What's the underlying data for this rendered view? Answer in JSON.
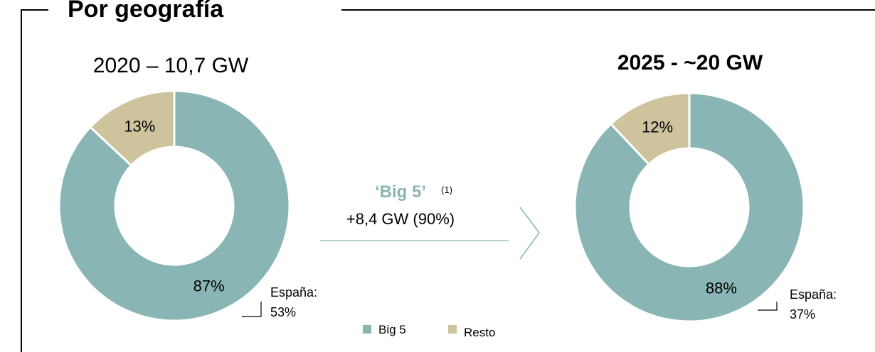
{
  "header": {
    "title": "Por geografía"
  },
  "chart_data": [
    {
      "type": "donut",
      "title": "2020 – 10,7 GW",
      "title_weight": "normal",
      "categories": [
        "Big 5",
        "Resto"
      ],
      "values": [
        87,
        13
      ],
      "value_labels": [
        "87%",
        "13%"
      ],
      "colors": [
        "#8ab5b5",
        "#cdc39c"
      ],
      "annotation": [
        "España:",
        "53%"
      ]
    },
    {
      "type": "donut",
      "title": "2025 - ~20 GW",
      "title_weight": "bold",
      "categories": [
        "Big 5",
        "Resto"
      ],
      "values": [
        88,
        12
      ],
      "value_labels": [
        "88%",
        "12%"
      ],
      "colors": [
        "#8ab5b5",
        "#cdc39c"
      ],
      "annotation": [
        "España:",
        "37%"
      ]
    }
  ],
  "middle": {
    "title": "‘Big 5’",
    "note": "(1)",
    "text": "+8,4 GW (90%)"
  }
}
